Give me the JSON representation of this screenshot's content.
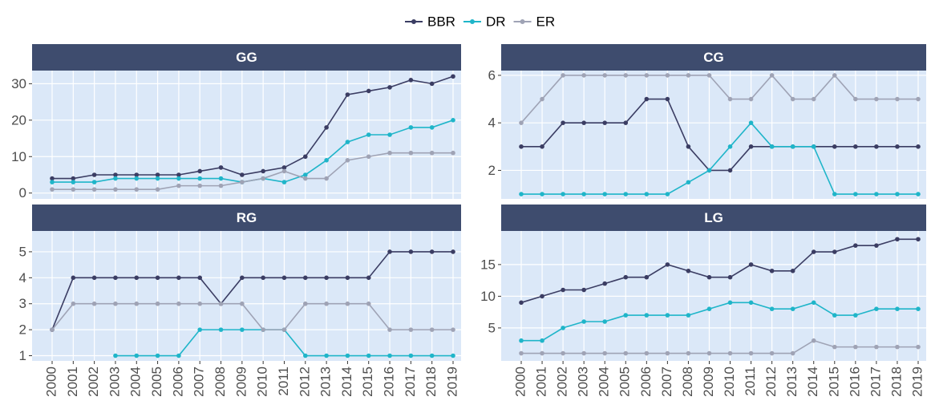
{
  "chart_data": [
    {
      "type": "line",
      "title": "GG",
      "ylim": [
        -1.6,
        33.6
      ],
      "yticks": [
        0,
        10,
        20,
        30
      ],
      "grid": true,
      "series": [
        {
          "name": "BBR",
          "color": "#3b3d63",
          "values": [
            4,
            4,
            5,
            5,
            5,
            5,
            5,
            6,
            7,
            5,
            6,
            7,
            10,
            18,
            27,
            28,
            29,
            31,
            30,
            32
          ]
        },
        {
          "name": "DR",
          "color": "#1fb5c9",
          "values": [
            3,
            3,
            3,
            4,
            4,
            4,
            4,
            4,
            4,
            3,
            4,
            3,
            5,
            9,
            14,
            16,
            16,
            18,
            18,
            20
          ]
        },
        {
          "name": "ER",
          "color": "#9fa3b5",
          "values": [
            1,
            1,
            1,
            1,
            1,
            1,
            2,
            2,
            2,
            3,
            4,
            6,
            4,
            4,
            9,
            10,
            11,
            11,
            11,
            11
          ]
        }
      ]
    },
    {
      "type": "line",
      "title": "CG",
      "ylim": [
        0.8,
        6.2
      ],
      "yticks": [
        2,
        4,
        6
      ],
      "grid": true,
      "series": [
        {
          "name": "BBR",
          "color": "#3b3d63",
          "values": [
            3,
            3,
            4,
            4,
            4,
            4,
            5,
            5,
            3,
            2,
            2,
            3,
            3,
            3,
            3,
            3,
            3,
            3,
            3,
            3
          ]
        },
        {
          "name": "DR",
          "color": "#1fb5c9",
          "values": [
            1,
            1,
            1,
            1,
            1,
            1,
            1,
            1,
            1.5,
            2,
            3,
            4,
            3,
            3,
            3,
            1,
            1,
            1,
            1,
            1
          ]
        },
        {
          "name": "ER",
          "color": "#9fa3b5",
          "values": [
            4,
            5,
            6,
            6,
            6,
            6,
            6,
            6,
            6,
            6,
            5,
            5,
            6,
            5,
            5,
            6,
            5,
            5,
            5,
            5
          ]
        }
      ]
    },
    {
      "type": "line",
      "title": "RG",
      "ylim": [
        0.8,
        5.8
      ],
      "yticks": [
        1,
        2,
        3,
        4,
        5
      ],
      "grid": true,
      "categories": [
        "2000",
        "2001",
        "2002",
        "2003",
        "2004",
        "2005",
        "2006",
        "2007",
        "2008",
        "2009",
        "2010",
        "2011",
        "2012",
        "2013",
        "2014",
        "2015",
        "2016",
        "2017",
        "2018",
        "2019"
      ],
      "series": [
        {
          "name": "BBR",
          "color": "#3b3d63",
          "values": [
            2,
            4,
            4,
            4,
            4,
            4,
            4,
            4,
            3,
            4,
            4,
            4,
            4,
            4,
            4,
            4,
            5,
            5,
            5,
            5
          ]
        },
        {
          "name": "DR",
          "color": "#1fb5c9",
          "values": [
            null,
            null,
            null,
            1,
            1,
            1,
            1,
            2,
            2,
            2,
            2,
            2,
            1,
            1,
            1,
            1,
            1,
            1,
            1,
            1
          ]
        },
        {
          "name": "ER",
          "color": "#9fa3b5",
          "values": [
            2,
            3,
            3,
            3,
            3,
            3,
            3,
            3,
            3,
            3,
            2,
            2,
            3,
            3,
            3,
            3,
            2,
            2,
            2,
            2
          ]
        }
      ]
    },
    {
      "type": "line",
      "title": "LG",
      "ylim": [
        -0.2,
        20.3
      ],
      "yticks": [
        5,
        10,
        15
      ],
      "grid": true,
      "categories": [
        "2000",
        "2001",
        "2002",
        "2003",
        "2004",
        "2005",
        "2006",
        "2007",
        "2008",
        "2009",
        "2010",
        "2011",
        "2012",
        "2013",
        "2014",
        "2015",
        "2016",
        "2017",
        "2018",
        "2019"
      ],
      "series": [
        {
          "name": "BBR",
          "color": "#3b3d63",
          "values": [
            9,
            10,
            11,
            11,
            12,
            13,
            13,
            15,
            14,
            13,
            13,
            15,
            14,
            14,
            17,
            17,
            18,
            18,
            19,
            19
          ]
        },
        {
          "name": "DR",
          "color": "#1fb5c9",
          "values": [
            3,
            3,
            5,
            6,
            6,
            7,
            7,
            7,
            7,
            8,
            9,
            9,
            8,
            8,
            9,
            7,
            7,
            8,
            8,
            8
          ]
        },
        {
          "name": "ER",
          "color": "#9fa3b5",
          "values": [
            1,
            1,
            1,
            1,
            1,
            1,
            1,
            1,
            1,
            1,
            1,
            1,
            1,
            1,
            3,
            2,
            2,
            2,
            2,
            2
          ]
        }
      ]
    }
  ]
}
